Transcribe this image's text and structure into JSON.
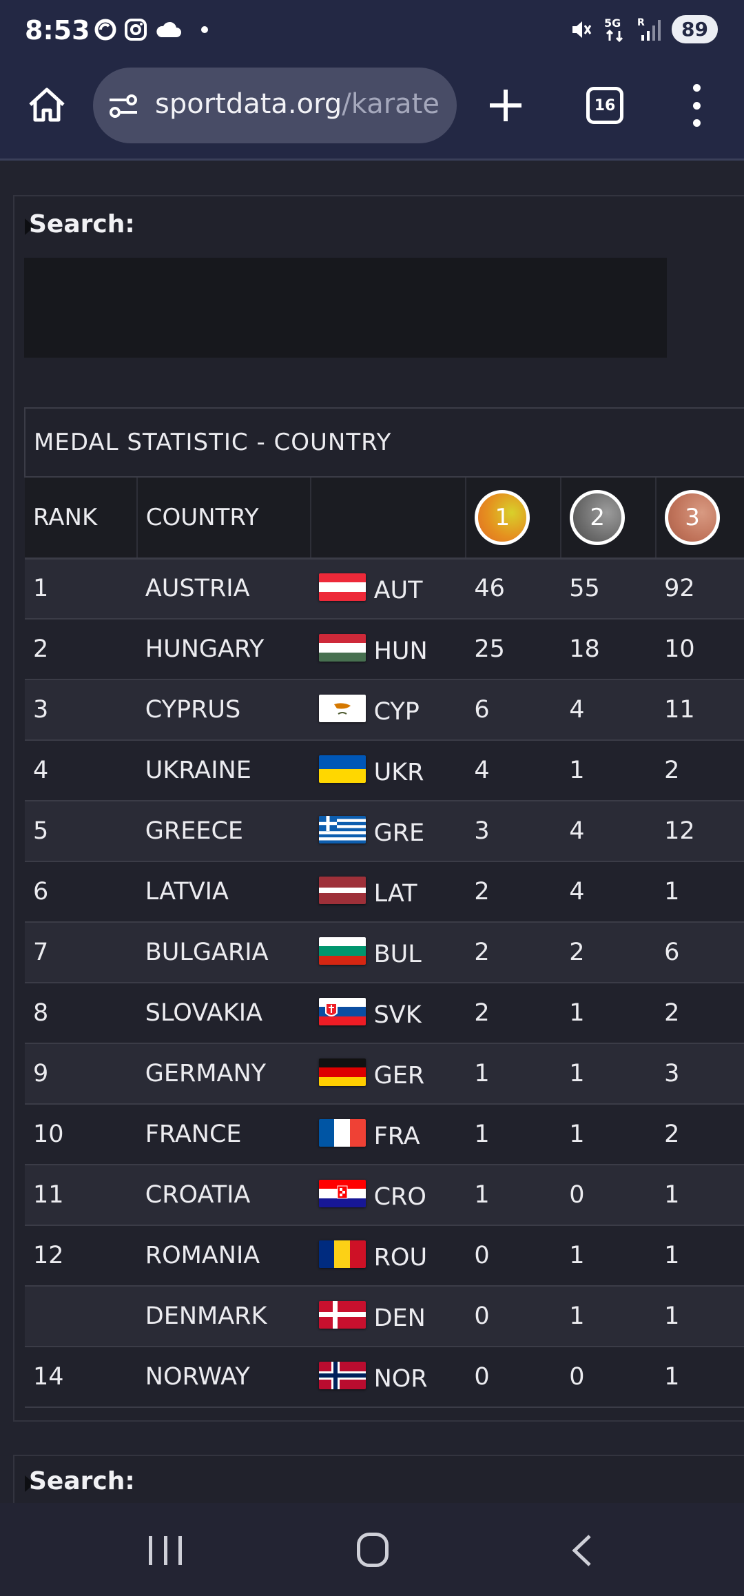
{
  "status_bar": {
    "time": "8:53",
    "battery": "89",
    "icons": [
      "sync-icon",
      "instagram-icon",
      "cloud-icon",
      "dot-icon",
      "mute-icon",
      "5g-icon",
      "signal-icon"
    ]
  },
  "browser": {
    "url_host": "sportdata.org",
    "url_path": "/karate",
    "tab_count": "16"
  },
  "search": {
    "label": "Search:",
    "label_bottom": "Search:"
  },
  "table": {
    "title": "MEDAL STATISTIC - COUNTRY",
    "headers": {
      "rank": "RANK",
      "country": "COUNTRY",
      "flag": "",
      "gold": "1",
      "silver": "2",
      "bronze": "3"
    },
    "rows": [
      {
        "rank": "1",
        "country": "AUSTRIA",
        "code": "AUT",
        "gold": "46",
        "silver": "55",
        "bronze": "92"
      },
      {
        "rank": "2",
        "country": "HUNGARY",
        "code": "HUN",
        "gold": "25",
        "silver": "18",
        "bronze": "10"
      },
      {
        "rank": "3",
        "country": "CYPRUS",
        "code": "CYP",
        "gold": "6",
        "silver": "4",
        "bronze": "11"
      },
      {
        "rank": "4",
        "country": "UKRAINE",
        "code": "UKR",
        "gold": "4",
        "silver": "1",
        "bronze": "2"
      },
      {
        "rank": "5",
        "country": "GREECE",
        "code": "GRE",
        "gold": "3",
        "silver": "4",
        "bronze": "12"
      },
      {
        "rank": "6",
        "country": "LATVIA",
        "code": "LAT",
        "gold": "2",
        "silver": "4",
        "bronze": "1"
      },
      {
        "rank": "7",
        "country": "BULGARIA",
        "code": "BUL",
        "gold": "2",
        "silver": "2",
        "bronze": "6"
      },
      {
        "rank": "8",
        "country": "SLOVAKIA",
        "code": "SVK",
        "gold": "2",
        "silver": "1",
        "bronze": "2"
      },
      {
        "rank": "9",
        "country": "GERMANY",
        "code": "GER",
        "gold": "1",
        "silver": "1",
        "bronze": "3"
      },
      {
        "rank": "10",
        "country": "FRANCE",
        "code": "FRA",
        "gold": "1",
        "silver": "1",
        "bronze": "2"
      },
      {
        "rank": "11",
        "country": "CROATIA",
        "code": "CRO",
        "gold": "1",
        "silver": "0",
        "bronze": "1"
      },
      {
        "rank": "12",
        "country": "ROMANIA",
        "code": "ROU",
        "gold": "0",
        "silver": "1",
        "bronze": "1"
      },
      {
        "rank": "",
        "country": "DENMARK",
        "code": "DEN",
        "gold": "0",
        "silver": "1",
        "bronze": "1"
      },
      {
        "rank": "14",
        "country": "NORWAY",
        "code": "NOR",
        "gold": "0",
        "silver": "0",
        "bronze": "1"
      }
    ]
  },
  "nav": {
    "icons": [
      "recents-icon",
      "home-icon",
      "back-icon"
    ]
  },
  "colors": {
    "topbar": "#232844",
    "url_pill": "#484c66",
    "page_bg": "#22232e",
    "row_odd": "#2a2b36",
    "row_even": "#21222c"
  }
}
